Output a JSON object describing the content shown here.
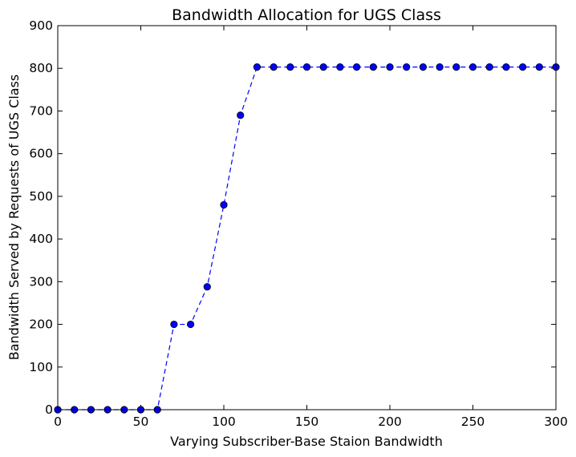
{
  "chart_data": {
    "type": "line",
    "title": "Bandwidth Allocation for UGS Class",
    "xlabel": "Varying Subscriber-Base Staion Bandwidth",
    "ylabel": "Bandwidth Served by Requests of UGS Class",
    "xlim": [
      0,
      300
    ],
    "ylim": [
      0,
      900
    ],
    "xticks": [
      0,
      50,
      100,
      150,
      200,
      250,
      300
    ],
    "yticks": [
      0,
      100,
      200,
      300,
      400,
      500,
      600,
      700,
      800,
      900
    ],
    "grid": false,
    "line_style": "dashed",
    "marker": "circle",
    "color": "#0000ff",
    "series": [
      {
        "x": [
          0,
          10,
          20,
          30,
          40,
          50,
          60,
          70,
          80,
          90,
          100,
          110,
          120,
          130,
          140,
          150,
          160,
          170,
          180,
          190,
          200,
          210,
          220,
          230,
          240,
          250,
          260,
          270,
          280,
          290,
          300
        ],
        "y": [
          0,
          0,
          0,
          0,
          0,
          0,
          0,
          200,
          200,
          288,
          480,
          690,
          803,
          803,
          803,
          803,
          803,
          803,
          803,
          803,
          803,
          803,
          803,
          803,
          803,
          803,
          803,
          803,
          803,
          803,
          803
        ]
      }
    ]
  }
}
